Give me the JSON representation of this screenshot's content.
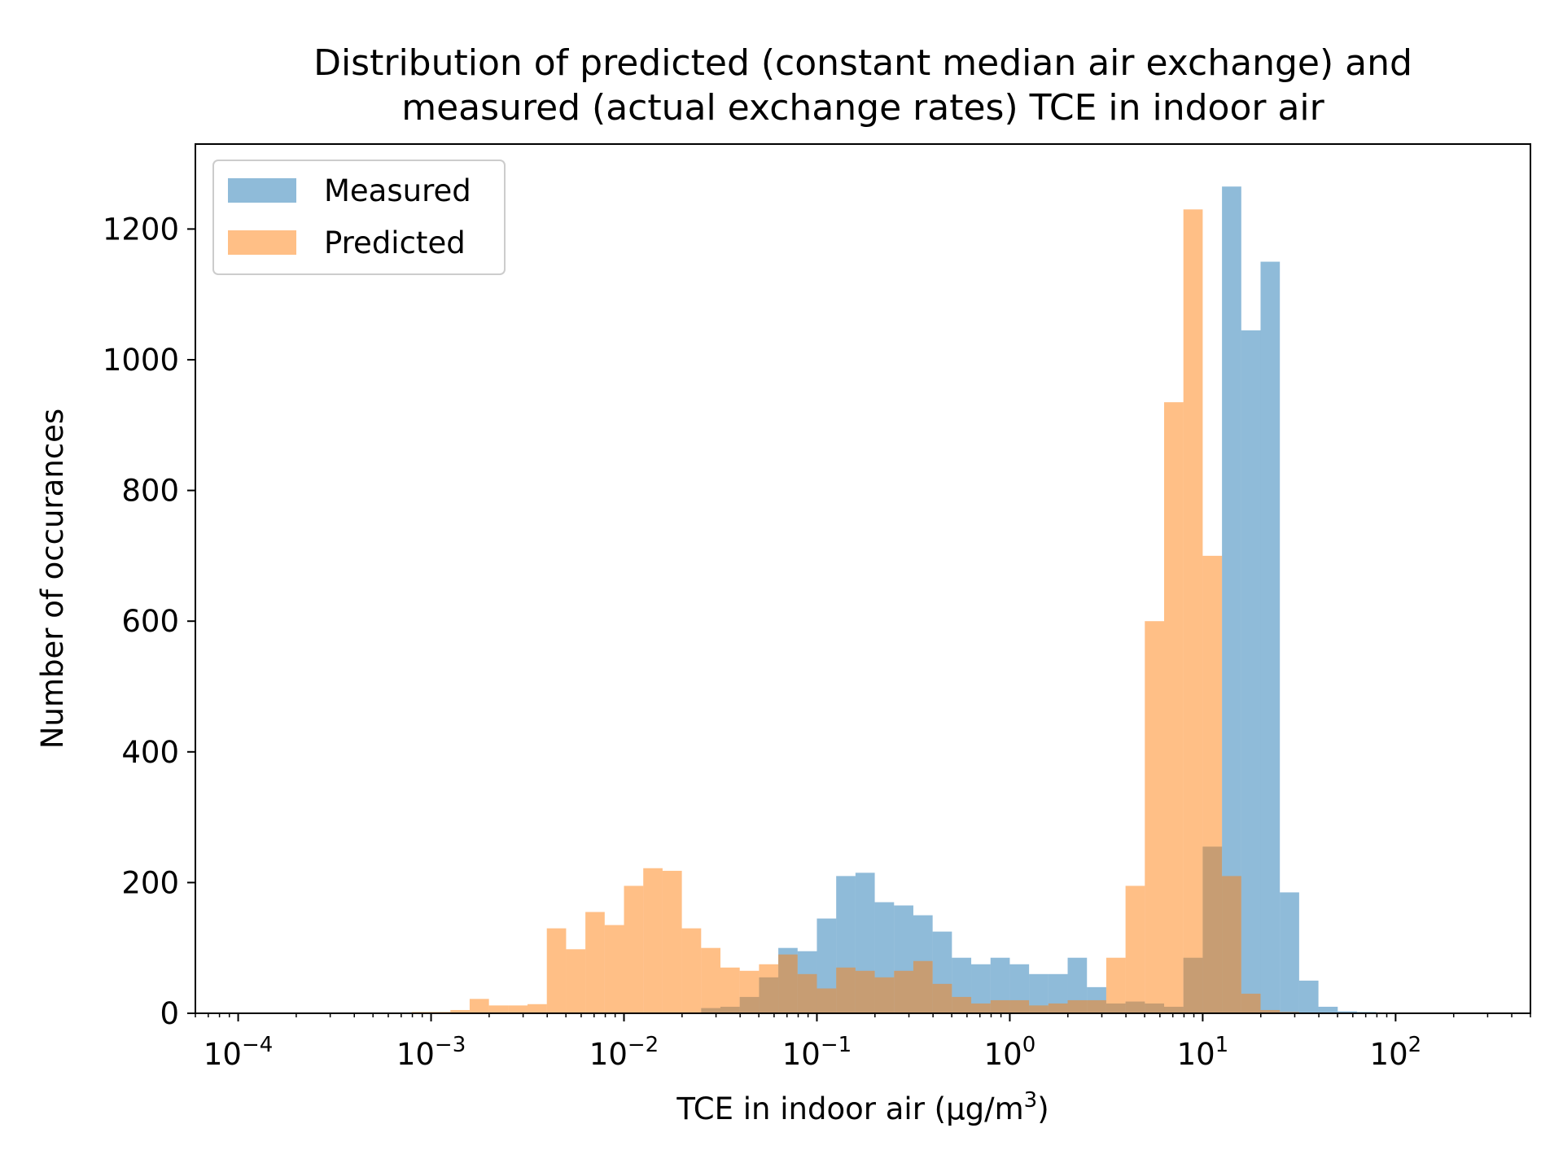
{
  "chart_data": {
    "type": "histogram",
    "title_line1": "Distribution of predicted (constant median air exchange) and",
    "title_line2": "measured (actual exchange rates) TCE in indoor air",
    "xlabel": "TCE in indoor air (µg/m",
    "xlabel_sup": "3",
    "xlabel_end": ")",
    "ylabel": "Number of occurances",
    "x_scale": "log",
    "xlim": [
      6e-05,
      500
    ],
    "ylim": [
      0,
      1330
    ],
    "x_ticks": [
      {
        "base": "10",
        "exp": "−4",
        "value": 0.0001
      },
      {
        "base": "10",
        "exp": "−3",
        "value": 0.001
      },
      {
        "base": "10",
        "exp": "−2",
        "value": 0.01
      },
      {
        "base": "10",
        "exp": "−1",
        "value": 0.1
      },
      {
        "base": "10",
        "exp": "0",
        "value": 1
      },
      {
        "base": "10",
        "exp": "1",
        "value": 10
      },
      {
        "base": "10",
        "exp": "2",
        "value": 100
      }
    ],
    "y_ticks": [
      "0",
      "200",
      "400",
      "600",
      "800",
      "1000",
      "1200"
    ],
    "y_tick_values": [
      0,
      200,
      400,
      600,
      800,
      1000,
      1200
    ],
    "grid": false,
    "legend_position": "top-left",
    "bin_edges_log10": [
      -3.1,
      -3.0,
      -2.9,
      -2.8,
      -2.7,
      -2.6,
      -2.5,
      -2.4,
      -2.3,
      -2.2,
      -2.1,
      -2.0,
      -1.9,
      -1.8,
      -1.7,
      -1.6,
      -1.5,
      -1.4,
      -1.3,
      -1.2,
      -1.1,
      -1.0,
      -0.9,
      -0.8,
      -0.7,
      -0.6,
      -0.5,
      -0.4,
      -0.3,
      -0.2,
      -0.1,
      0.0,
      0.1,
      0.2,
      0.3,
      0.4,
      0.5,
      0.6,
      0.7,
      0.8,
      0.9,
      1.0,
      1.1,
      1.2,
      1.3,
      1.4,
      1.5,
      1.6,
      1.7,
      1.8,
      1.9,
      2.0
    ],
    "series": [
      {
        "name": "Measured",
        "color": "#1f77b4",
        "opacity": 0.5,
        "values": [
          0,
          0,
          0,
          0,
          0,
          0,
          0,
          0,
          0,
          0,
          0,
          0,
          0,
          0,
          0,
          8,
          10,
          25,
          55,
          100,
          95,
          145,
          210,
          215,
          170,
          165,
          150,
          125,
          85,
          75,
          85,
          75,
          60,
          60,
          85,
          40,
          15,
          18,
          15,
          10,
          85,
          255,
          1265,
          1045,
          1150,
          185,
          50,
          10,
          3,
          2,
          1
        ]
      },
      {
        "name": "Predicted",
        "color": "#ff7f0e",
        "opacity": 0.5,
        "values": [
          2,
          2,
          5,
          22,
          12,
          12,
          14,
          130,
          98,
          155,
          135,
          195,
          222,
          218,
          130,
          100,
          70,
          65,
          75,
          90,
          60,
          38,
          70,
          65,
          55,
          65,
          80,
          45,
          25,
          15,
          20,
          20,
          12,
          15,
          20,
          20,
          85,
          195,
          600,
          935,
          1230,
          700,
          210,
          30,
          5,
          2,
          1,
          0,
          0,
          0,
          0
        ]
      }
    ]
  }
}
